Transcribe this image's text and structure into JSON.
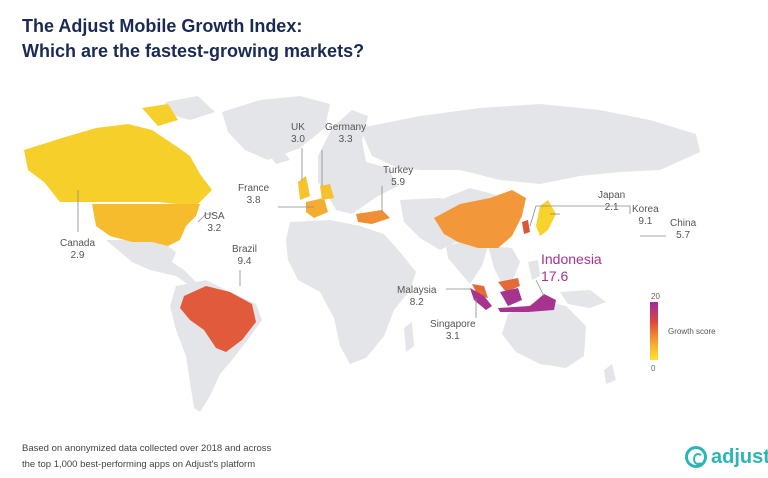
{
  "title": {
    "line1": "The Adjust Mobile Growth Index:",
    "line2": "Which are the fastest-growing markets?"
  },
  "markets": [
    {
      "name": "Canada",
      "score": "2.9"
    },
    {
      "name": "USA",
      "score": "3.2"
    },
    {
      "name": "UK",
      "score": "3.0"
    },
    {
      "name": "Germany",
      "score": "3.3"
    },
    {
      "name": "France",
      "score": "3.8"
    },
    {
      "name": "Turkey",
      "score": "5.9"
    },
    {
      "name": "Brazil",
      "score": "9.4"
    },
    {
      "name": "Japan",
      "score": "2.1"
    },
    {
      "name": "Korea",
      "score": "9.1"
    },
    {
      "name": "China",
      "score": "5.7"
    },
    {
      "name": "Malaysia",
      "score": "8.2"
    },
    {
      "name": "Singapore",
      "score": "3.1"
    },
    {
      "name": "Indonesia",
      "score": "17.6"
    }
  ],
  "legend": {
    "title": "Growth score",
    "max": "20",
    "min": "0"
  },
  "colors": {
    "land": "#e4e5e8",
    "low": "#f7cf2b",
    "mid": "#f2a03a",
    "high": "#e25a3c",
    "top": "#a6338e",
    "title": "#1a2a55",
    "brand": "#2bb5b5"
  },
  "footnote": {
    "line1": "Based on anonymized data collected over 2018 and across",
    "line2": "the top 1,000 best-performing apps on Adjust's platform"
  },
  "logo": {
    "word": "adjust"
  }
}
